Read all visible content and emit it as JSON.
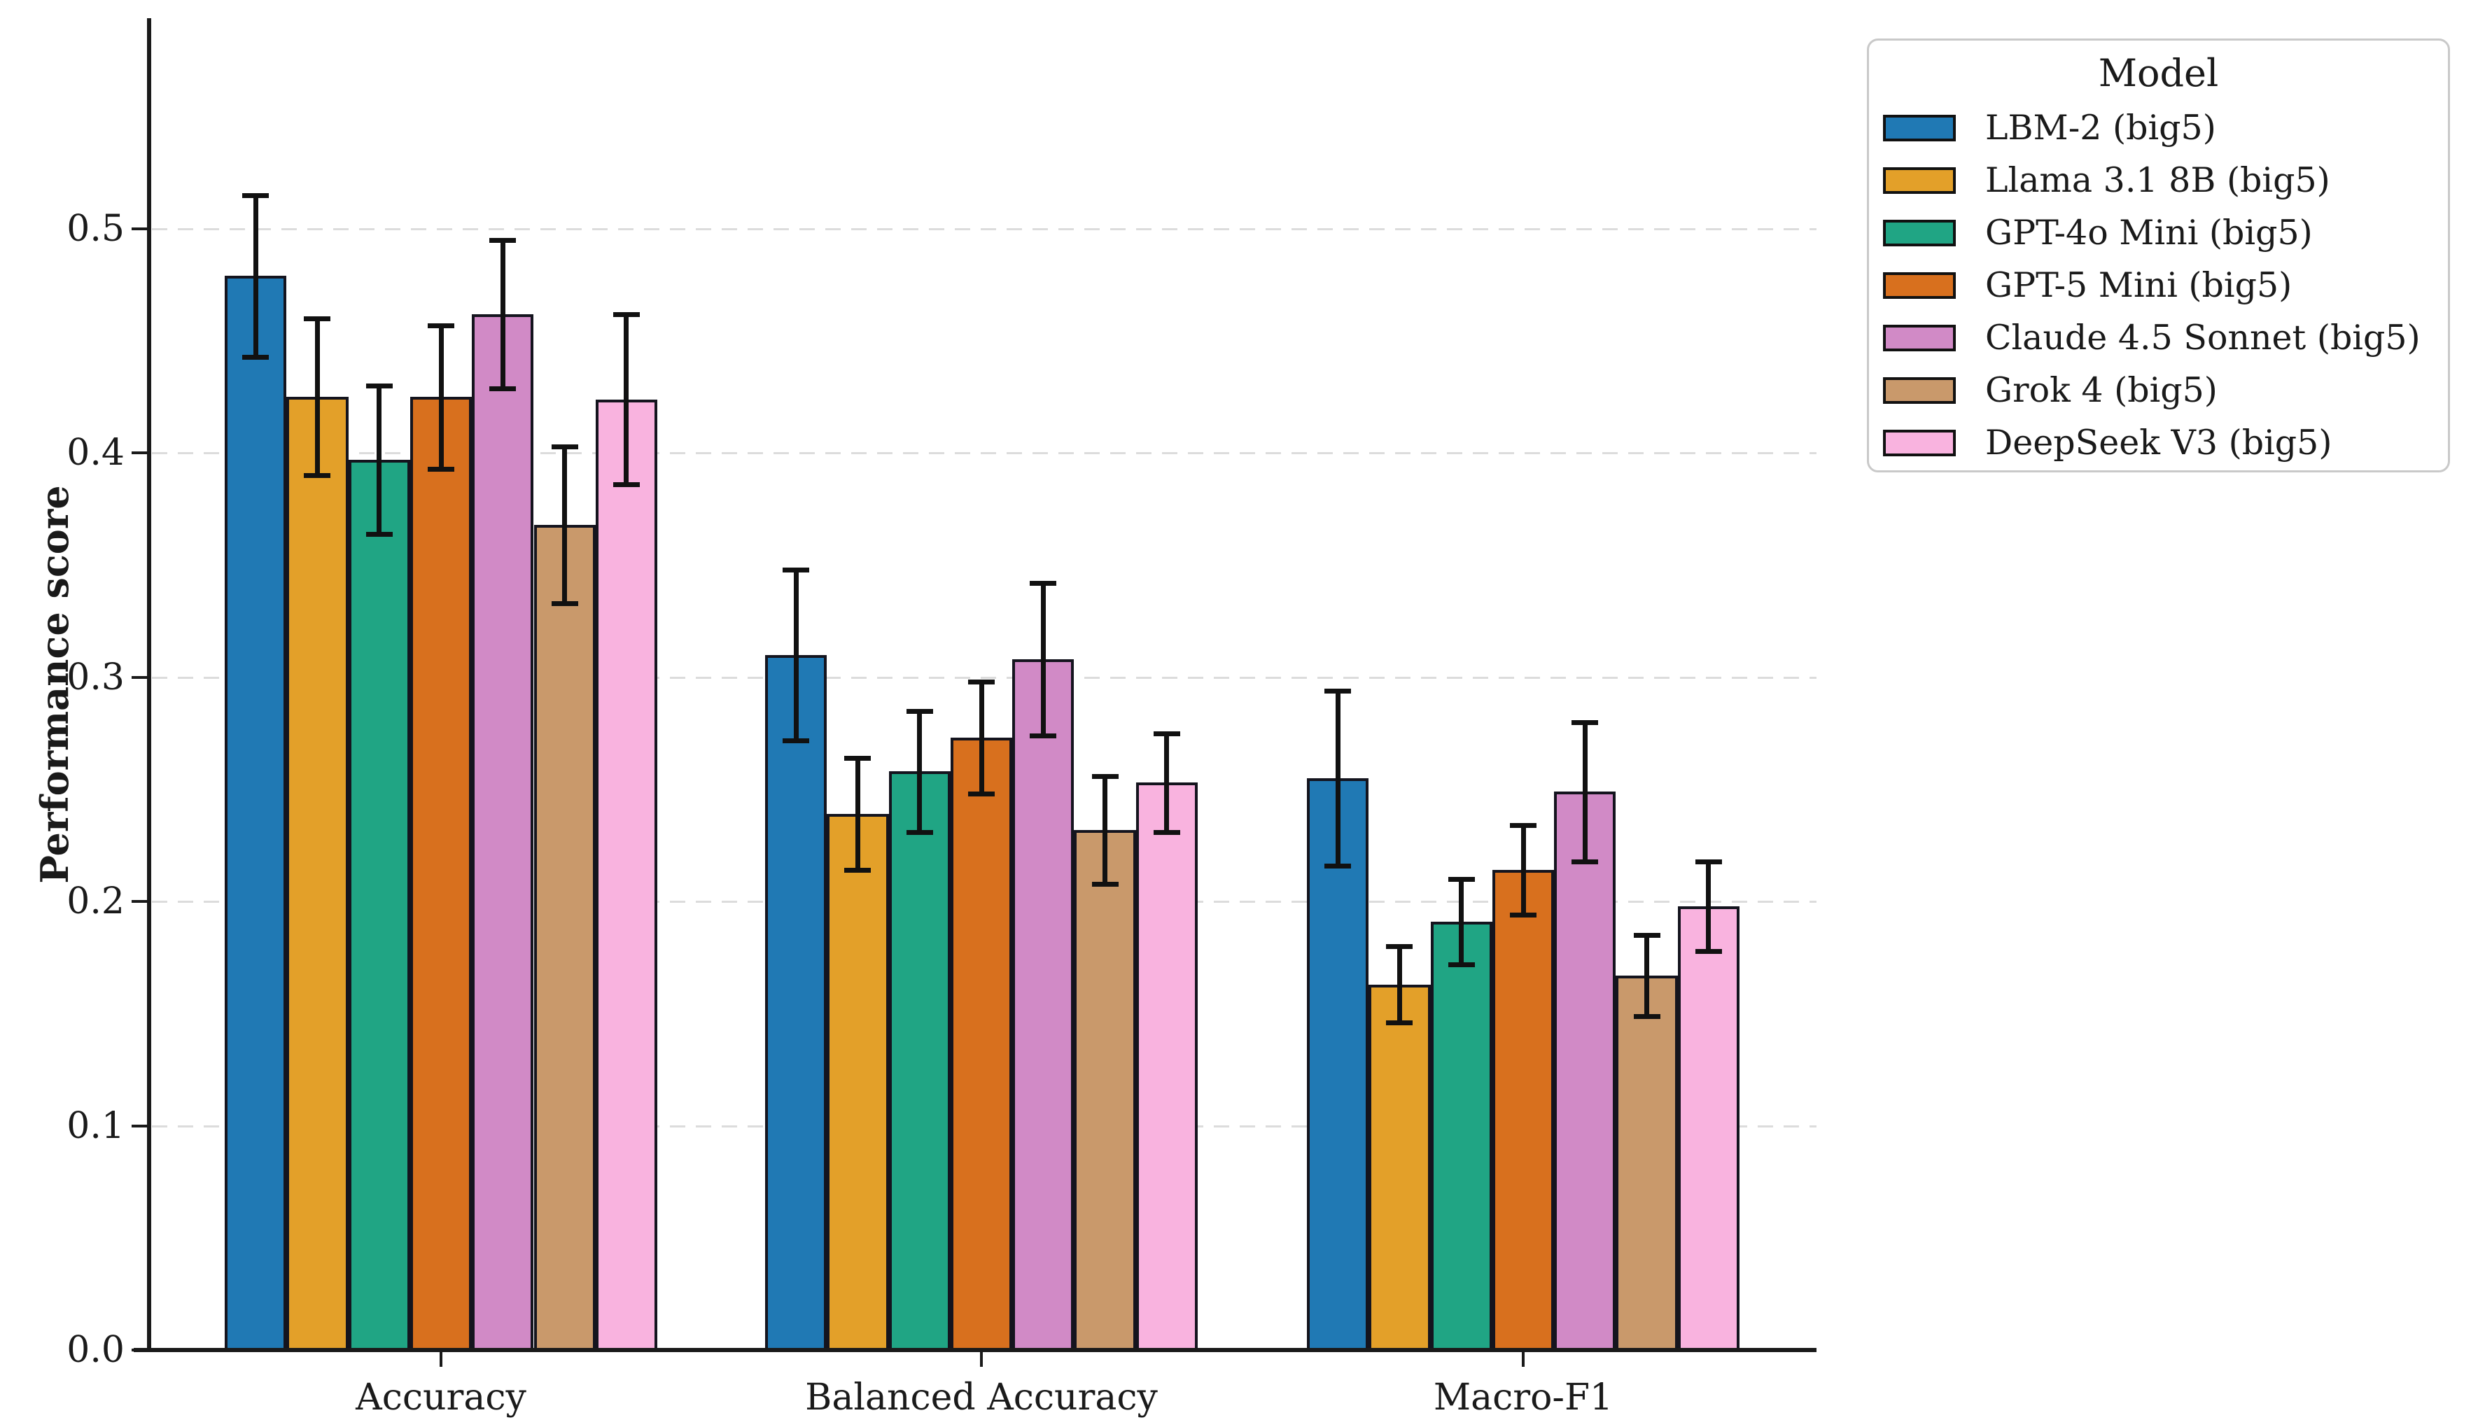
{
  "y_axis": {
    "label": "Performance score",
    "tick_labels": [
      "0.0",
      "0.1",
      "0.2",
      "0.3",
      "0.4",
      "0.5"
    ],
    "tick_values": [
      0.0,
      0.1,
      0.2,
      0.3,
      0.4,
      0.5
    ]
  },
  "x_axis": {
    "categories": [
      "Accuracy",
      "Balanced Accuracy",
      "Macro-F1"
    ]
  },
  "legend": {
    "title": "Model"
  },
  "chart_data": {
    "type": "bar",
    "title": "",
    "xlabel": "",
    "ylabel": "Performance score",
    "categories": [
      "Accuracy",
      "Balanced Accuracy",
      "Macro-F1"
    ],
    "ylim": [
      0,
      0.594
    ],
    "grid": "horizontal-dashed",
    "legend_position": "upper-right-outside",
    "error_bars": true,
    "series": [
      {
        "name": "LBM-2 (big5)",
        "color": "#2079B4",
        "values": [
          0.479,
          0.31,
          0.255
        ],
        "errors": [
          0.036,
          0.038,
          0.039
        ]
      },
      {
        "name": "Llama 3.1 8B (big5)",
        "color": "#E3A029",
        "values": [
          0.425,
          0.239,
          0.163
        ],
        "errors": [
          0.035,
          0.025,
          0.017
        ]
      },
      {
        "name": "GPT-4o Mini (big5)",
        "color": "#20A584",
        "values": [
          0.397,
          0.258,
          0.191
        ],
        "errors": [
          0.033,
          0.027,
          0.019
        ]
      },
      {
        "name": "GPT-5 Mini (big5)",
        "color": "#D8701E",
        "values": [
          0.425,
          0.273,
          0.214
        ],
        "errors": [
          0.032,
          0.025,
          0.02
        ]
      },
      {
        "name": "Claude 4.5 Sonnet (big5)",
        "color": "#D18AC6",
        "values": [
          0.462,
          0.308,
          0.249
        ],
        "errors": [
          0.033,
          0.034,
          0.031
        ]
      },
      {
        "name": "Grok 4 (big5)",
        "color": "#C9996B",
        "values": [
          0.368,
          0.232,
          0.167
        ],
        "errors": [
          0.035,
          0.024,
          0.018
        ]
      },
      {
        "name": "DeepSeek V3 (big5)",
        "color": "#F9B3DF",
        "values": [
          0.424,
          0.253,
          0.198
        ],
        "errors": [
          0.038,
          0.022,
          0.02
        ]
      }
    ]
  }
}
